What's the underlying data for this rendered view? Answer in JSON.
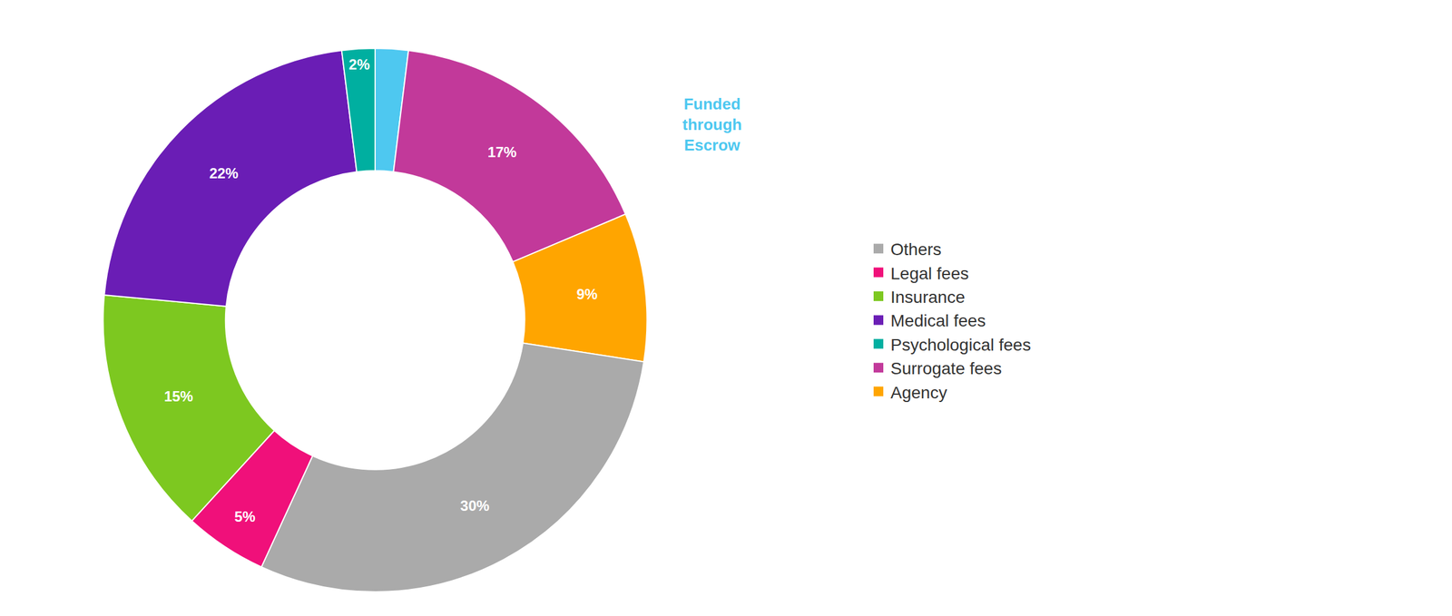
{
  "chart_data": {
    "type": "donut",
    "categories": [
      "Funded through Escrow",
      "Surrogate fees",
      "Agency",
      "Others",
      "Legal fees",
      "Insurance",
      "Medical fees",
      "Psychological fees"
    ],
    "values": [
      2,
      17,
      9,
      30,
      5,
      15,
      22,
      2
    ],
    "colors": [
      "#4EC8F0",
      "#C2399A",
      "#FFA500",
      "#AAAAAA",
      "#F0107A",
      "#7DC820",
      "#6A1DB5",
      "#00AFA0"
    ],
    "data_labels": true,
    "value_labels": [
      null,
      "17%",
      "9%",
      "30%",
      "5%",
      "15%",
      "22%",
      "2%"
    ],
    "annotations": [
      {
        "text": "Funded\nthrough\nEscrow",
        "color": "#4EC8F0"
      }
    ],
    "legend": "right",
    "legend_entries": [
      "Others",
      "Legal fees",
      "Insurance",
      "Medical fees",
      "Psychological fees",
      "Surrogate fees",
      "Agency"
    ]
  }
}
